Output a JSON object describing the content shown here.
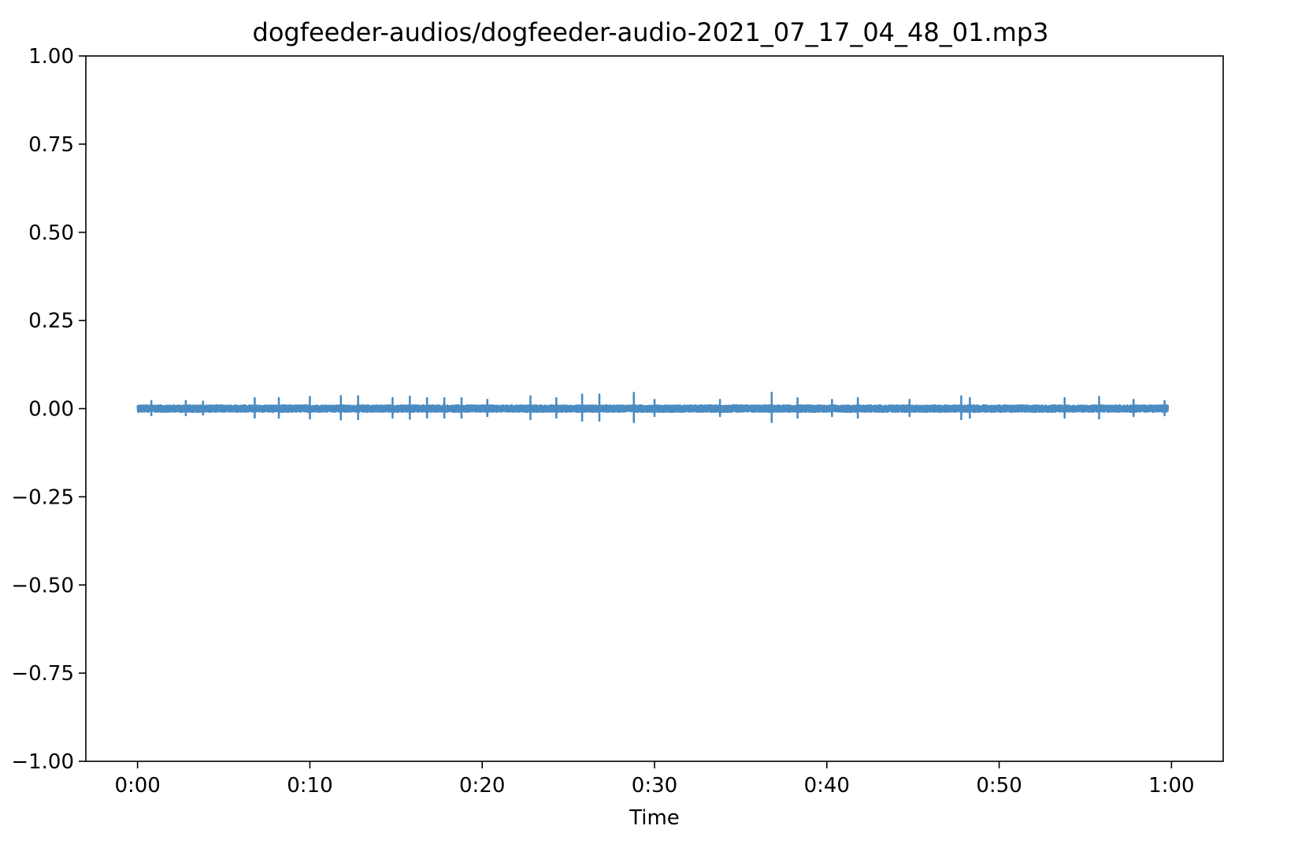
{
  "chart_data": {
    "type": "line",
    "title": "dogfeeder-audios/dogfeeder-audio-2021_07_17_04_48_01.mp3",
    "xlabel": "Time",
    "ylabel": "",
    "xlim": [
      -3,
      63
    ],
    "ylim": [
      -1.0,
      1.0
    ],
    "x_ticks": [
      {
        "value": 0,
        "label": "0:00"
      },
      {
        "value": 10,
        "label": "0:10"
      },
      {
        "value": 20,
        "label": "0:20"
      },
      {
        "value": 30,
        "label": "0:30"
      },
      {
        "value": 40,
        "label": "0:40"
      },
      {
        "value": 50,
        "label": "0:50"
      },
      {
        "value": 60,
        "label": "1:00"
      }
    ],
    "y_ticks": [
      {
        "value": 1.0,
        "label": "1.00"
      },
      {
        "value": 0.75,
        "label": "0.75"
      },
      {
        "value": 0.5,
        "label": "0.50"
      },
      {
        "value": 0.25,
        "label": "0.25"
      },
      {
        "value": 0.0,
        "label": "0.00"
      },
      {
        "value": -0.25,
        "label": "−0.25"
      },
      {
        "value": -0.5,
        "label": "−0.50"
      },
      {
        "value": -0.75,
        "label": "−0.75"
      },
      {
        "value": -1.0,
        "label": "−1.00"
      }
    ],
    "grid": false,
    "series": [
      {
        "color": "#4a8cc2",
        "duration": 59.8,
        "noise_amplitude": 0.01,
        "spikes": [
          {
            "t": 0.8,
            "amp": 0.022
          },
          {
            "t": 2.8,
            "amp": 0.022
          },
          {
            "t": 3.8,
            "amp": 0.02
          },
          {
            "t": 6.8,
            "amp": 0.03
          },
          {
            "t": 8.2,
            "amp": 0.03
          },
          {
            "t": 10.0,
            "amp": 0.033
          },
          {
            "t": 11.8,
            "amp": 0.036
          },
          {
            "t": 12.8,
            "amp": 0.035
          },
          {
            "t": 14.8,
            "amp": 0.03
          },
          {
            "t": 15.8,
            "amp": 0.034
          },
          {
            "t": 16.8,
            "amp": 0.03
          },
          {
            "t": 17.8,
            "amp": 0.03
          },
          {
            "t": 18.8,
            "amp": 0.03
          },
          {
            "t": 20.3,
            "amp": 0.025
          },
          {
            "t": 22.8,
            "amp": 0.035
          },
          {
            "t": 24.3,
            "amp": 0.03
          },
          {
            "t": 25.8,
            "amp": 0.04
          },
          {
            "t": 26.8,
            "amp": 0.04
          },
          {
            "t": 28.8,
            "amp": 0.045
          },
          {
            "t": 30.0,
            "amp": 0.025
          },
          {
            "t": 33.8,
            "amp": 0.025
          },
          {
            "t": 36.8,
            "amp": 0.045
          },
          {
            "t": 38.3,
            "amp": 0.03
          },
          {
            "t": 40.3,
            "amp": 0.025
          },
          {
            "t": 41.8,
            "amp": 0.03
          },
          {
            "t": 44.8,
            "amp": 0.025
          },
          {
            "t": 47.8,
            "amp": 0.035
          },
          {
            "t": 48.3,
            "amp": 0.03
          },
          {
            "t": 53.8,
            "amp": 0.03
          },
          {
            "t": 55.8,
            "amp": 0.033
          },
          {
            "t": 57.8,
            "amp": 0.025
          },
          {
            "t": 59.6,
            "amp": 0.022
          }
        ]
      }
    ]
  }
}
